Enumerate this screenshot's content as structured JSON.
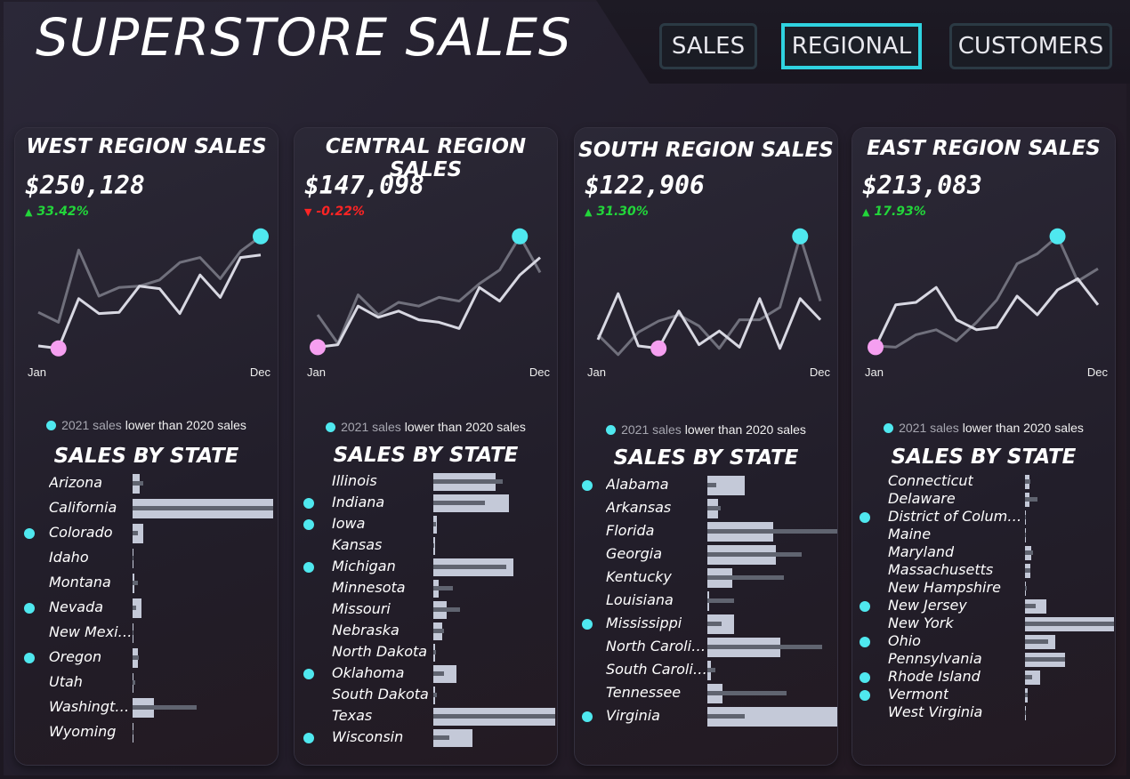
{
  "title": "SUPERSTORE SALES",
  "nav": [
    {
      "label": "SALES",
      "active": false
    },
    {
      "label": "REGIONAL",
      "active": true
    },
    {
      "label": "CUSTOMERS",
      "active": false
    }
  ],
  "colors": {
    "accent": "#2fd3e0",
    "dot": "#4fe8ef",
    "low_marker": "#f59ff0",
    "up": "#22d63a",
    "down": "#ff2424",
    "series_2021": "#d8d8e2",
    "series_2020": "#70707c",
    "bar_2021": "#c4c9d8",
    "bar_2020": "#606470"
  },
  "month_start": "Jan",
  "month_end": "Dec",
  "legend": {
    "prefix": "2021 sales",
    "suffix": "lower than 2020 sales"
  },
  "sbs_title": "SALES BY STATE",
  "chart_data": [
    {
      "type": "line",
      "title": "WEST REGION SALES",
      "total": "$250,128",
      "change": "33.42%",
      "change_dir": "up",
      "x": [
        "Jan",
        "Feb",
        "Mar",
        "Apr",
        "May",
        "Jun",
        "Jul",
        "Aug",
        "Sep",
        "Oct",
        "Nov",
        "Dec"
      ],
      "series": [
        {
          "values": [
            0.05,
            0.03,
            0.43,
            0.31,
            0.32,
            0.53,
            0.51,
            0.31,
            0.62,
            0.44,
            0.76,
            0.78
          ]
        },
        {
          "values": [
            0.32,
            0.24,
            0.82,
            0.45,
            0.52,
            0.53,
            0.58,
            0.72,
            0.76,
            0.59,
            0.81,
            0.93
          ]
        }
      ],
      "state_data": {
        "type": "bar",
        "categories": [
          "Arizona",
          "California",
          "Colorado",
          "Idaho",
          "Montana",
          "Nevada",
          "New Mexico",
          "Oregon",
          "Utah",
          "Washington",
          "Wyoming"
        ],
        "lower_2021": [
          false,
          false,
          true,
          false,
          false,
          true,
          false,
          true,
          false,
          false,
          false
        ],
        "series": [
          {
            "values": [
              8,
              158,
              12,
              1,
              2,
              10,
              1,
              6,
              1,
              24,
              1
            ]
          },
          {
            "values": [
              12,
              158,
              6,
              1,
              6,
              4,
              1,
              7,
              3,
              72,
              1
            ]
          }
        ]
      }
    },
    {
      "type": "line",
      "title": "CENTRAL REGION SALES",
      "total": "$147,098",
      "change": "-0.22%",
      "change_dir": "down",
      "x": [
        "Jan",
        "Feb",
        "Mar",
        "Apr",
        "May",
        "Jun",
        "Jul",
        "Aug",
        "Sep",
        "Oct",
        "Nov",
        "Dec"
      ],
      "series": [
        {
          "values": [
            0.04,
            0.06,
            0.37,
            0.28,
            0.33,
            0.26,
            0.24,
            0.19,
            0.52,
            0.41,
            0.62,
            0.76
          ]
        },
        {
          "values": [
            0.3,
            0.07,
            0.46,
            0.3,
            0.4,
            0.37,
            0.44,
            0.41,
            0.55,
            0.66,
            0.93,
            0.64
          ]
        }
      ],
      "state_data": {
        "type": "bar",
        "categories": [
          "Illinois",
          "Indiana",
          "Iowa",
          "Kansas",
          "Michigan",
          "Minnesota",
          "Missouri",
          "Nebraska",
          "North Dakota",
          "Oklahoma",
          "South Dakota",
          "Texas",
          "Wisconsin"
        ],
        "lower_2021": [
          false,
          true,
          true,
          false,
          true,
          false,
          false,
          false,
          false,
          true,
          false,
          false,
          true
        ],
        "series": [
          {
            "values": [
              70,
              85,
              4,
              2,
              90,
              6,
              15,
              10,
              2,
              26,
              2,
              137,
              44
            ]
          },
          {
            "values": [
              78,
              58,
              3,
              1,
              82,
              22,
              30,
              12,
              3,
              12,
              4,
              137,
              18
            ]
          }
        ]
      }
    },
    {
      "type": "line",
      "title": "SOUTH REGION SALES",
      "total": "$122,906",
      "change": "31.30%",
      "change_dir": "up",
      "x": [
        "Jan",
        "Feb",
        "Mar",
        "Apr",
        "May",
        "Jun",
        "Jul",
        "Aug",
        "Sep",
        "Oct",
        "Nov",
        "Dec"
      ],
      "series": [
        {
          "values": [
            0.1,
            0.47,
            0.05,
            0.03,
            0.33,
            0.06,
            0.17,
            0.04,
            0.43,
            0.03,
            0.43,
            0.26
          ]
        },
        {
          "values": [
            0.14,
            -0.02,
            0.16,
            0.25,
            0.3,
            0.21,
            0.03,
            0.26,
            0.26,
            0.36,
            0.93,
            0.41
          ]
        }
      ],
      "state_data": {
        "type": "bar",
        "categories": [
          "Alabama",
          "Arkansas",
          "Florida",
          "Georgia",
          "Kentucky",
          "Louisiana",
          "Mississippi",
          "North Carolina",
          "South Carolina",
          "Tennessee",
          "Virginia"
        ],
        "lower_2021": [
          true,
          false,
          false,
          false,
          false,
          false,
          true,
          false,
          false,
          false,
          true
        ],
        "series": [
          {
            "values": [
              42,
              12,
              74,
              77,
              28,
              2,
              30,
              82,
              4,
              17,
              146
            ]
          },
          {
            "values": [
              10,
              15,
              146,
              106,
              86,
              30,
              16,
              129,
              9,
              89,
              42
            ]
          }
        ]
      }
    },
    {
      "type": "line",
      "title": "EAST REGION SALES",
      "total": "$213,083",
      "change": "17.93%",
      "change_dir": "up",
      "x": [
        "Jan",
        "Feb",
        "Mar",
        "Apr",
        "May",
        "Jun",
        "Jul",
        "Aug",
        "Sep",
        "Oct",
        "Nov",
        "Dec"
      ],
      "series": [
        {
          "values": [
            0.04,
            0.38,
            0.4,
            0.52,
            0.26,
            0.18,
            0.2,
            0.45,
            0.3,
            0.5,
            0.59,
            0.38
          ]
        },
        {
          "values": [
            0.05,
            0.04,
            0.14,
            0.18,
            0.09,
            0.24,
            0.42,
            0.71,
            0.79,
            0.93,
            0.57,
            0.67
          ]
        }
      ],
      "state_data": {
        "type": "bar",
        "categories": [
          "Connecticut",
          "Delaware",
          "District of Columb..",
          "Maine",
          "Maryland",
          "Massachusetts",
          "New Hampshire",
          "New Jersey",
          "New York",
          "Ohio",
          "Pennsylvania",
          "Rhode Island",
          "Vermont",
          "West Virginia"
        ],
        "lower_2021": [
          false,
          false,
          true,
          false,
          false,
          false,
          false,
          true,
          false,
          true,
          false,
          true,
          true,
          false
        ],
        "series": [
          {
            "values": [
              5,
              5,
              1,
              1,
              7,
              6,
              1,
              24,
              100,
              34,
              45,
              17,
              3,
              1
            ]
          },
          {
            "values": [
              6,
              14,
              1,
              1,
              9,
              6,
              2,
              12,
              100,
              26,
              45,
              8,
              3,
              1
            ]
          }
        ]
      }
    }
  ]
}
